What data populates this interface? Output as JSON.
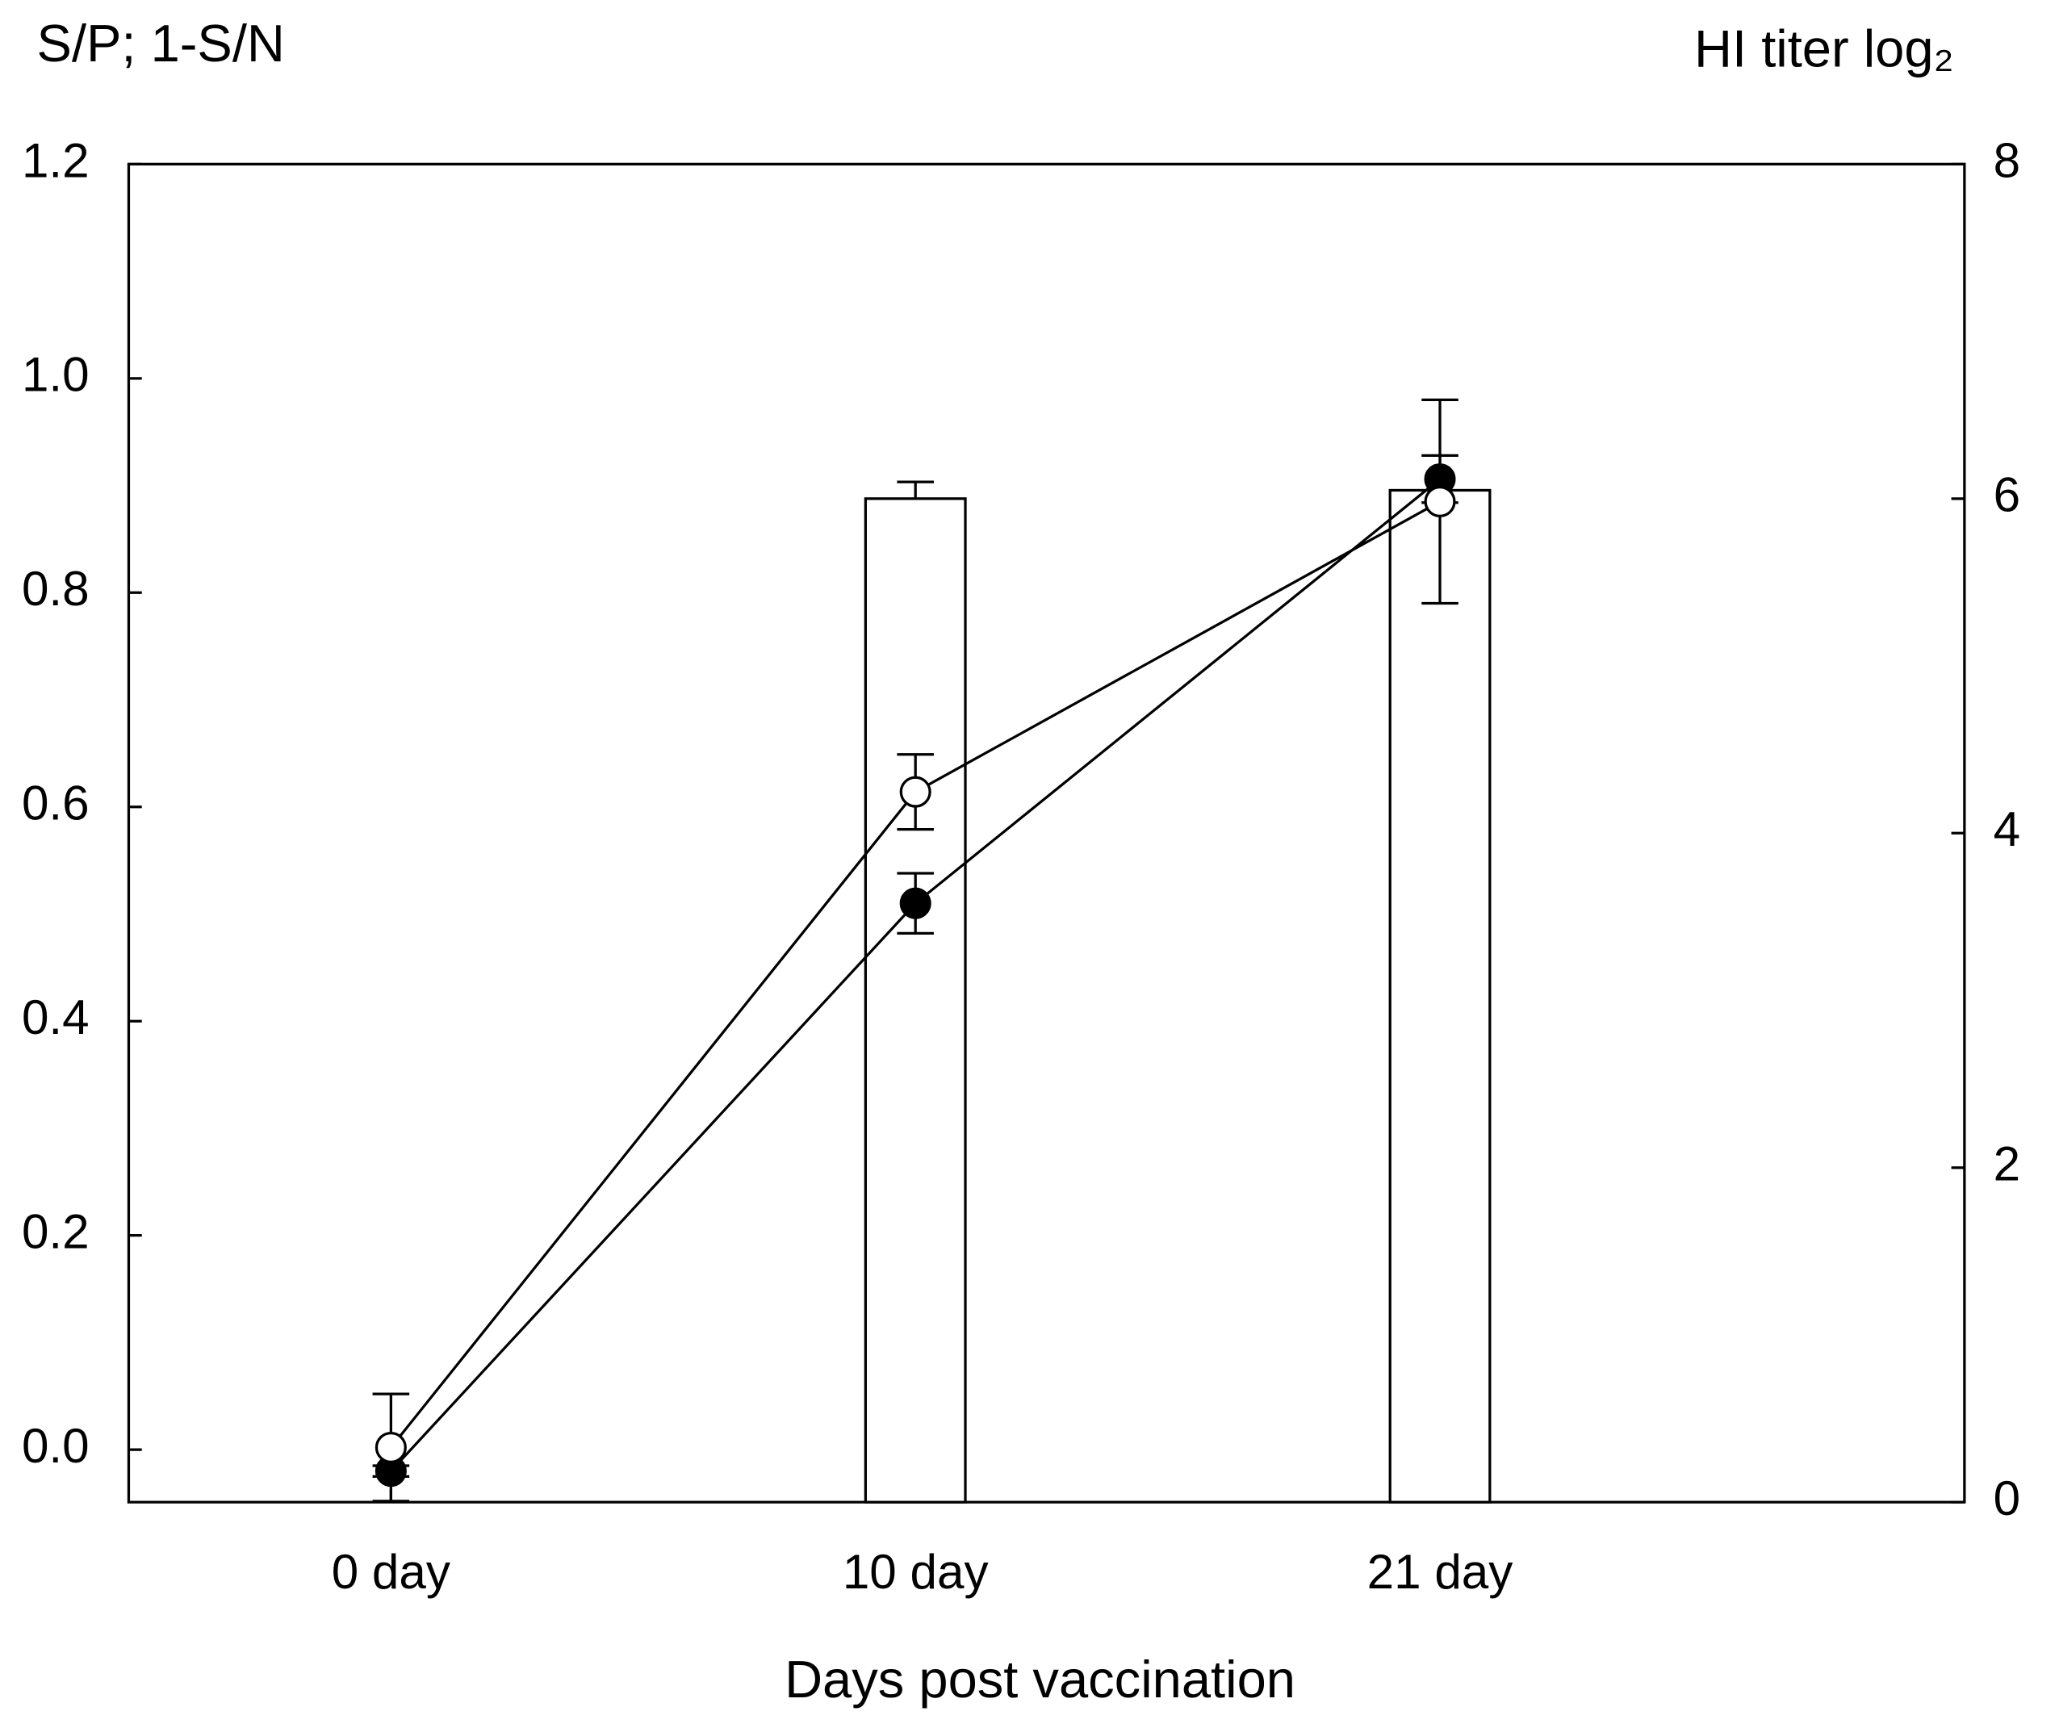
{
  "chart_data": {
    "type": "combo",
    "y_label": "S/P; 1-S/N",
    "y2_label": "HI titer log₂",
    "x_label": "Days post vaccination",
    "categories": [
      "0 day",
      "10 day",
      "21 day"
    ],
    "series": [
      {
        "type": "bar",
        "axis": "y2",
        "color": "#ffffff",
        "values": [
          0,
          6.0,
          6.05
        ],
        "errors": [
          null,
          0.1,
          null
        ]
      },
      {
        "type": "line",
        "color": "#000000",
        "values": [
          -0.02,
          0.51,
          0.906
        ],
        "errors": [
          0.005,
          0.028,
          0.022
        ]
      },
      {
        "type": "line",
        "color": "#ffffff",
        "values": [
          0.002,
          0.614,
          0.885
        ],
        "errors": [
          0.05,
          0.035,
          0.095
        ]
      }
    ],
    "ylim": [
      -0.049,
      1.2
    ],
    "yticks": [
      {
        "value": 0,
        "label": "0.0"
      },
      0.2,
      0.4,
      0.6,
      0.8,
      {
        "value": 1,
        "label": "1.0"
      },
      1.2
    ],
    "y2lim": [
      0,
      8
    ],
    "y2ticks": [
      0,
      2,
      4,
      6,
      8
    ]
  }
}
